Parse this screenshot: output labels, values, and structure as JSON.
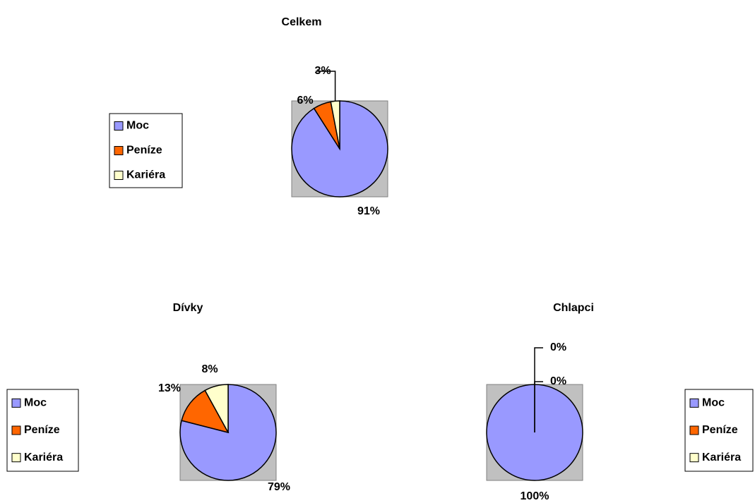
{
  "chart_data": [
    {
      "type": "pie",
      "title": "Celkem",
      "categories": [
        "Moc",
        "Peníze",
        "Kariéra"
      ],
      "values": [
        91,
        6,
        3
      ],
      "value_labels": [
        "91%",
        "6%",
        "3%"
      ],
      "colors": [
        "#9999ff",
        "#ff6600",
        "#ffffcc"
      ]
    },
    {
      "type": "pie",
      "title": "Dívky",
      "categories": [
        "Moc",
        "Peníze",
        "Kariéra"
      ],
      "values": [
        79,
        13,
        8
      ],
      "value_labels": [
        "79%",
        "13%",
        "8%"
      ],
      "colors": [
        "#9999ff",
        "#ff6600",
        "#ffffcc"
      ]
    },
    {
      "type": "pie",
      "title": "Chlapci",
      "categories": [
        "Moc",
        "Peníze",
        "Kariéra"
      ],
      "values": [
        100,
        0,
        0
      ],
      "value_labels": [
        "100%",
        "0%",
        "0%"
      ],
      "colors": [
        "#9999ff",
        "#ff6600",
        "#ffffcc"
      ]
    }
  ]
}
